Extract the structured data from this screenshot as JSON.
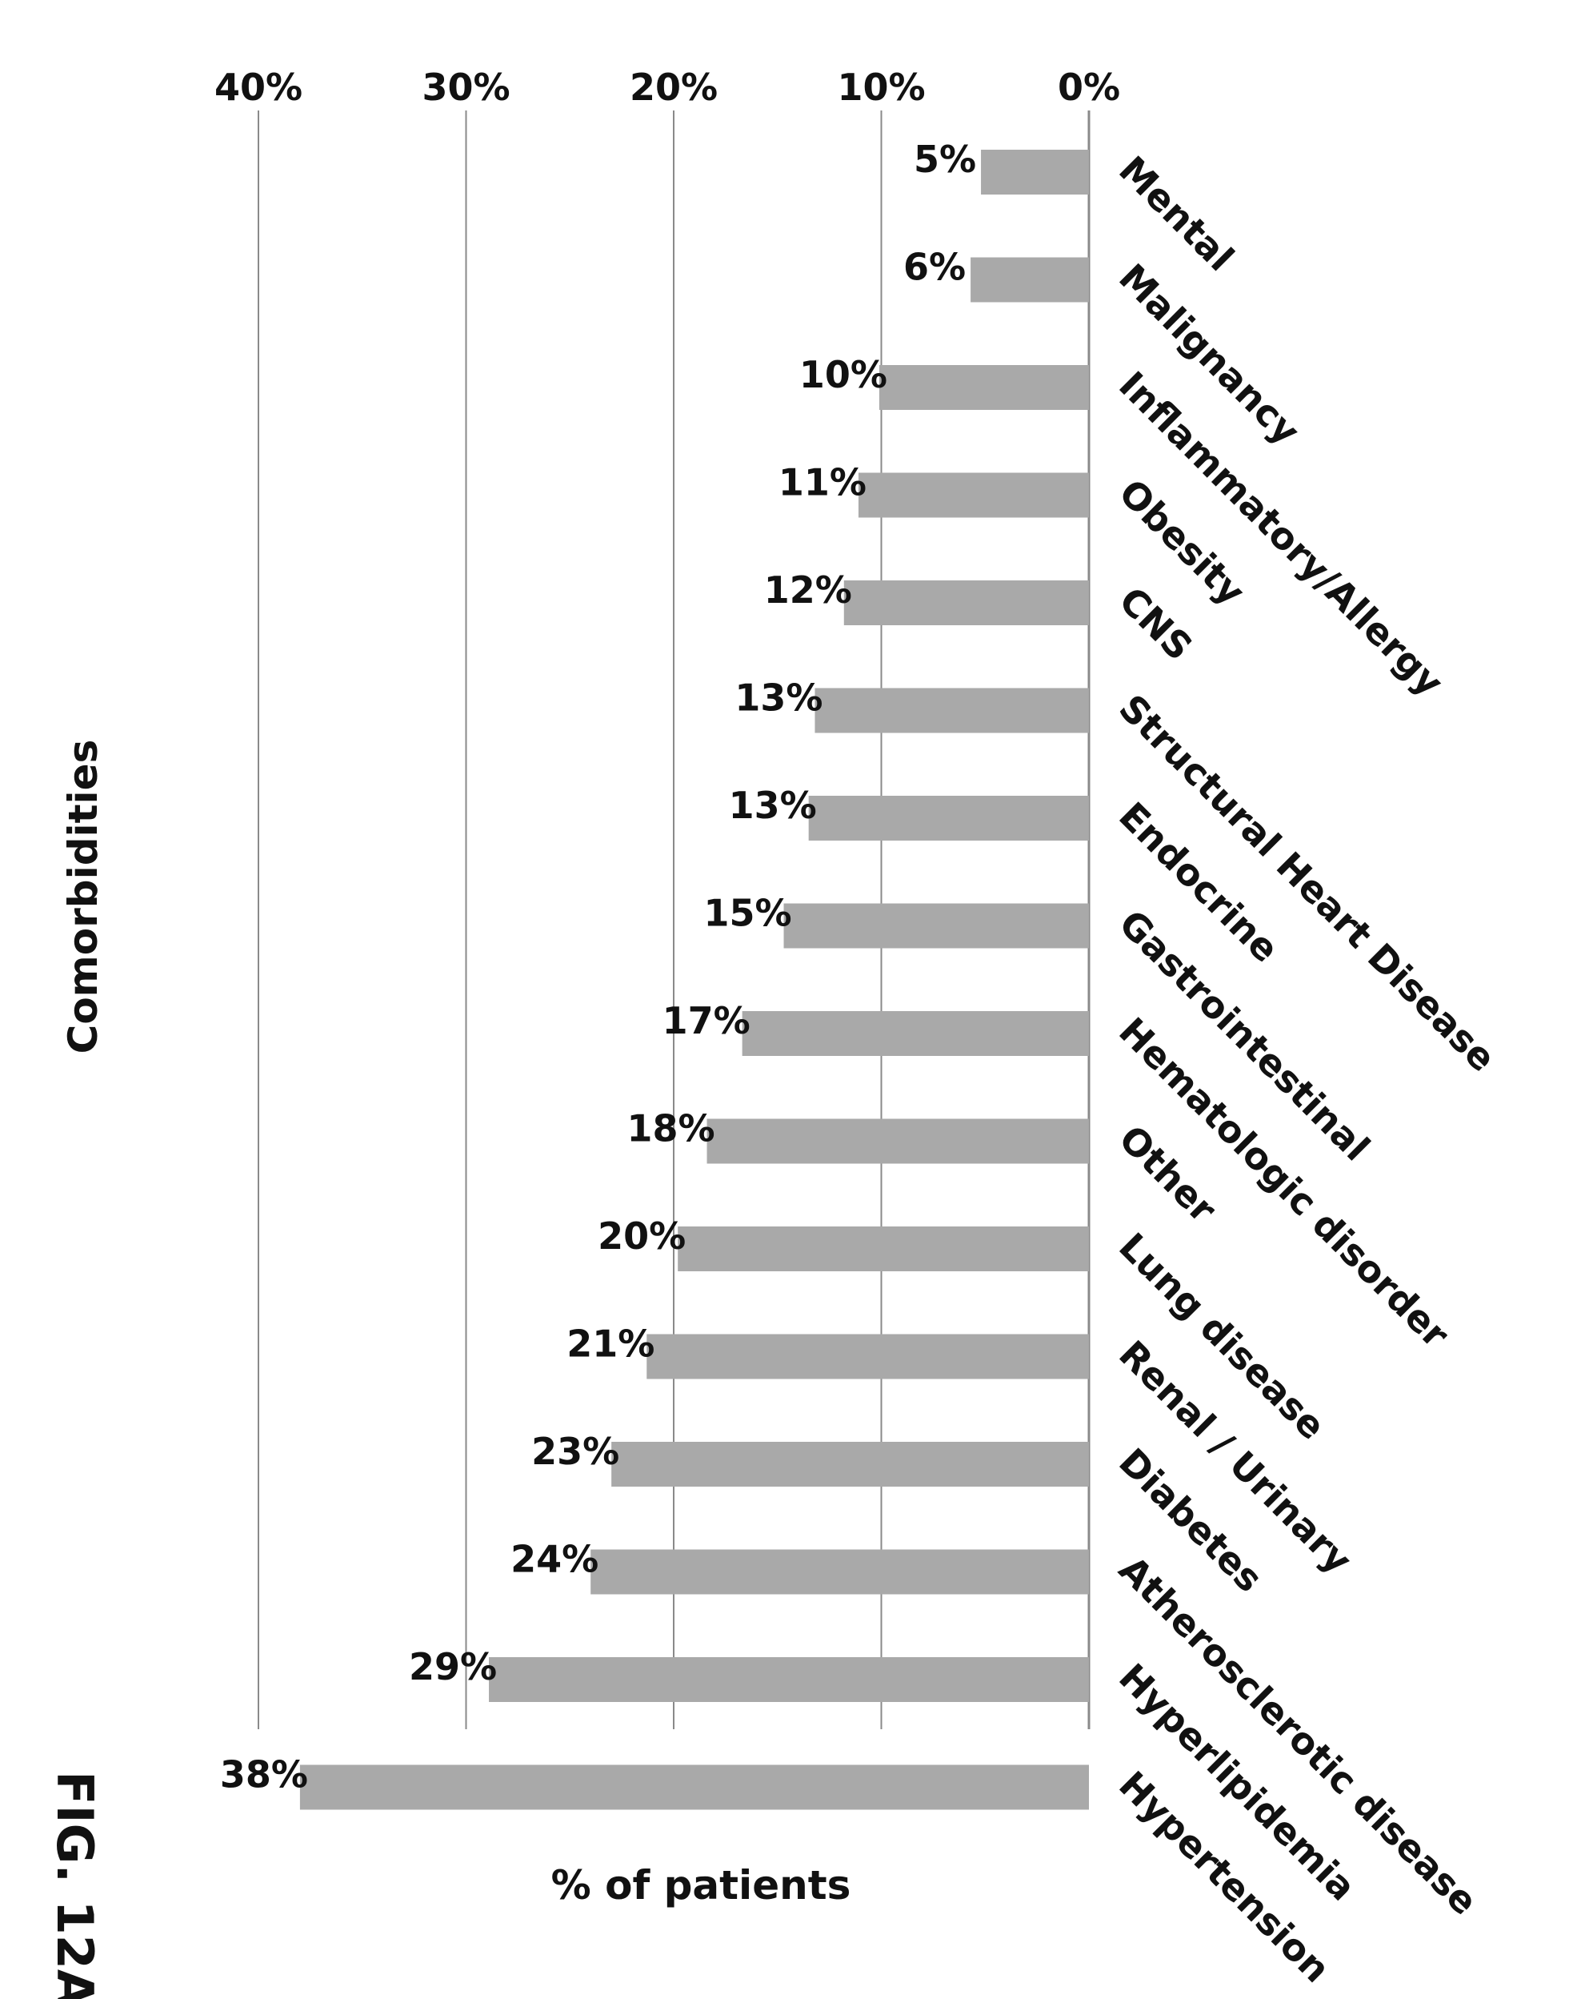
{
  "figure_label": "FIG. 12A",
  "chart_data": {
    "type": "bar",
    "title": "Comorbidities",
    "ylabel": "% of patients",
    "xlabel": "",
    "ylim": [
      0,
      40
    ],
    "yticks": [
      {
        "value": 0,
        "label": "0%"
      },
      {
        "value": 10,
        "label": "10%"
      },
      {
        "value": 20,
        "label": "20%"
      },
      {
        "value": 30,
        "label": "30%"
      },
      {
        "value": 40,
        "label": "40%"
      }
    ],
    "grid": true,
    "orientation": "figure rotated 90 degrees clockwise",
    "bar_color": "#a9a9a9",
    "categories": [
      "Mental",
      "Malignancy",
      "Inflammatory/Allergy",
      "Obesity",
      "CNS",
      "Structural Heart Disease",
      "Endocrine",
      "Gastrointestinal",
      "Hematologic disorder",
      "Other",
      "Lung disease",
      "Renal / Urinary",
      "Diabetes",
      "Atherosclerotic disease",
      "Hyperlipidemia",
      "Hypertension"
    ],
    "values": [
      5.2,
      5.7,
      10.1,
      11.1,
      11.8,
      13.2,
      13.5,
      14.7,
      16.7,
      18.4,
      19.8,
      21.3,
      23.0,
      24.0,
      28.9,
      38.0
    ],
    "data_labels": [
      "5%",
      "6%",
      "10%",
      "11%",
      "12%",
      "13%",
      "13%",
      "15%",
      "17%",
      "18%",
      "20%",
      "21%",
      "23%",
      "24%",
      "29%",
      "38%"
    ]
  }
}
